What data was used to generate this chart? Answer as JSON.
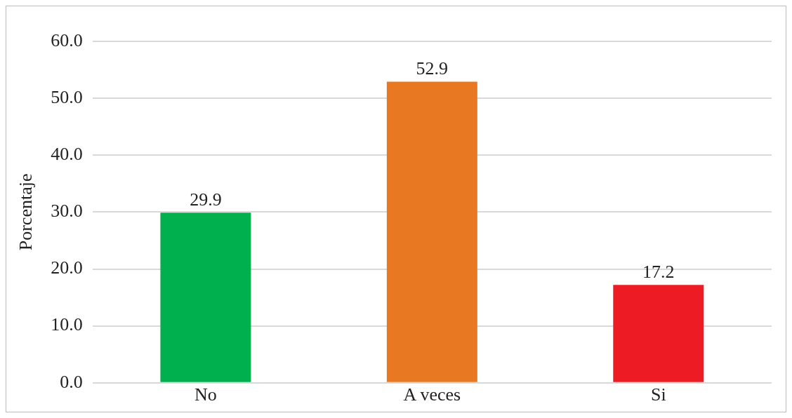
{
  "chart_data": {
    "type": "bar",
    "ylabel": "Porcentaje",
    "categories": [
      "No",
      "A veces",
      "Si"
    ],
    "values": [
      29.9,
      52.9,
      17.2
    ],
    "colors": [
      "#00b04f",
      "#e97823",
      "#ed1c24"
    ],
    "ylim": [
      0,
      60
    ],
    "yticks": [
      {
        "value": 0,
        "label": "0.0"
      },
      {
        "value": 10,
        "label": "10.0"
      },
      {
        "value": 20,
        "label": "20.0"
      },
      {
        "value": 30,
        "label": "30.0"
      },
      {
        "value": 40,
        "label": "40.0"
      },
      {
        "value": 50,
        "label": "50.0"
      },
      {
        "value": 60,
        "label": "60.0"
      }
    ],
    "grid": "y",
    "data_labels": true,
    "legend": false
  }
}
